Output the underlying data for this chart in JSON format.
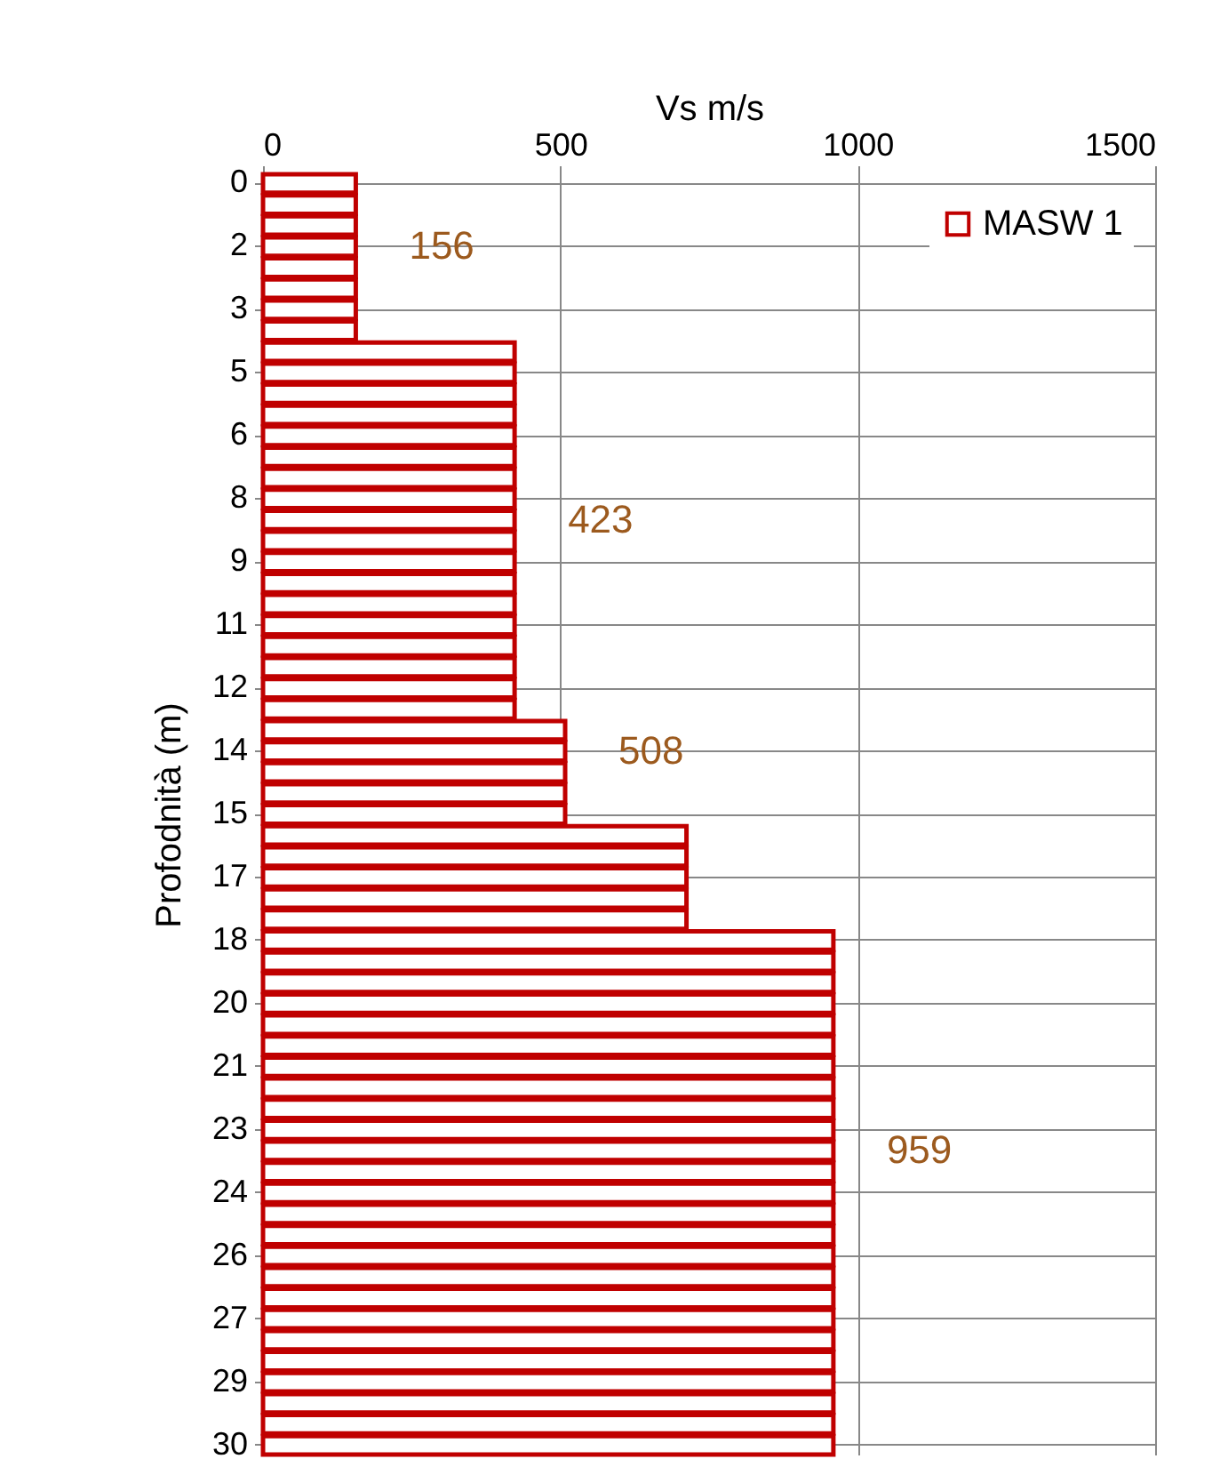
{
  "chart_data": {
    "type": "bar",
    "orientation": "horizontal",
    "xlabel": "Vs  m/s",
    "ylabel": "Profodnità (m)",
    "categories": [
      "0",
      null,
      null,
      "2",
      null,
      null,
      "3",
      null,
      null,
      "5",
      null,
      null,
      "6",
      null,
      null,
      "8",
      null,
      null,
      "9",
      null,
      null,
      "11",
      null,
      null,
      "12",
      null,
      null,
      "14",
      null,
      null,
      "15",
      null,
      null,
      "17",
      null,
      null,
      "18",
      null,
      null,
      "20",
      null,
      null,
      "21",
      null,
      null,
      "23",
      null,
      null,
      "24",
      null,
      null,
      "26",
      null,
      null,
      "27",
      null,
      null,
      "29",
      null,
      null,
      "30"
    ],
    "series": [
      {
        "name": "MASW 1",
        "color": "#c00000",
        "values": [
          156,
          156,
          156,
          156,
          156,
          156,
          156,
          156,
          423,
          423,
          423,
          423,
          423,
          423,
          423,
          423,
          423,
          423,
          423,
          423,
          423,
          423,
          423,
          423,
          423,
          423,
          508,
          508,
          508,
          508,
          508,
          712,
          712,
          712,
          712,
          712,
          959,
          959,
          959,
          959,
          959,
          959,
          959,
          959,
          959,
          959,
          959,
          959,
          959,
          959,
          959,
          959,
          959,
          959,
          959,
          959,
          959,
          959,
          959,
          959,
          959
        ],
        "value_labels": [
          null,
          null,
          null,
          "156",
          null,
          null,
          null,
          null,
          null,
          null,
          null,
          null,
          null,
          null,
          null,
          null,
          "423",
          null,
          null,
          null,
          null,
          null,
          null,
          null,
          null,
          null,
          null,
          "508",
          null,
          null,
          null,
          null,
          null,
          null,
          null,
          null,
          null,
          null,
          null,
          null,
          null,
          null,
          null,
          null,
          null,
          null,
          "959",
          null,
          null,
          null,
          null,
          null,
          null,
          null,
          null,
          null,
          null,
          null,
          null,
          null,
          null
        ]
      }
    ],
    "xlim": [
      0,
      1500
    ],
    "xticks": [
      0,
      500,
      1000,
      1500
    ],
    "grid": true,
    "legend": "top right"
  }
}
